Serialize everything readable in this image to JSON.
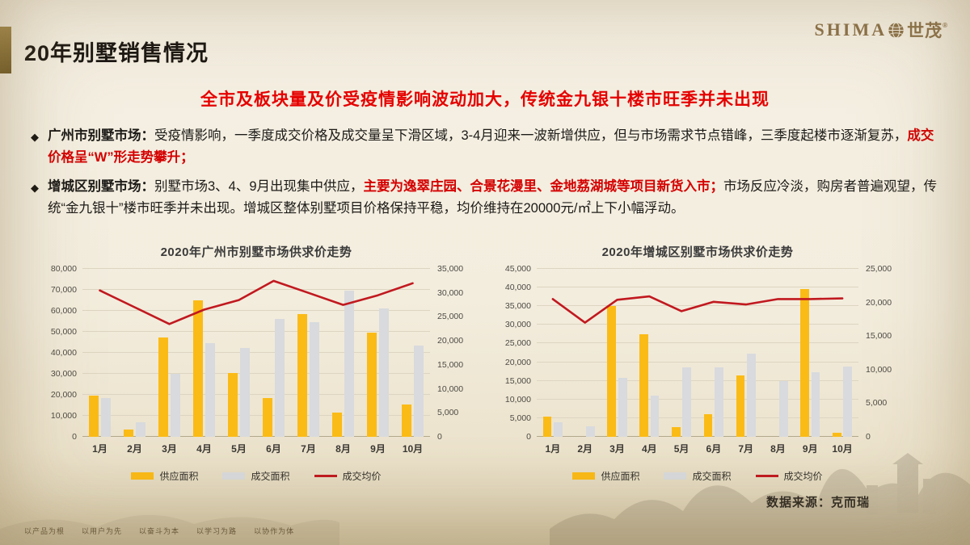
{
  "slide": {
    "title": "20年别墅销售情况",
    "logo": {
      "brand_en": "SHIMA",
      "brand_cn": "世茂",
      "reg": "®",
      "globe_icon": "globe-icon"
    },
    "headline": "全市及板块量及价受疫情影响波动加大，传统金九银十楼市旺季并未出现",
    "bullets": [
      {
        "label": "广州市别墅市场：",
        "segments": [
          {
            "text": "受疫情影响，一季度成交价格及成交量呈下滑区域，3-4月迎来一波新增供应，但与市场需求节点错峰，三季度起楼市逐渐复苏，",
            "style": "normal"
          },
          {
            "text": "成交价格呈“W”形走势攀升；",
            "style": "red"
          }
        ]
      },
      {
        "label": "增城区别墅市场：",
        "segments": [
          {
            "text": "别墅市场3、4、9月出现集中供应，",
            "style": "normal"
          },
          {
            "text": "主要为逸翠庄园、合景花漫里、金地荔湖城等项目新货入市；",
            "style": "red"
          },
          {
            "text": "市场反应冷淡，购房者普遍观望，传统“金九银十”楼市旺季并未出现。增城区整体别墅项目价格保持平稳，均价维持在20000元/㎡上下小幅浮动。",
            "style": "normal"
          }
        ]
      }
    ],
    "source": "数据来源：克而瑞",
    "footer_items": [
      "以产品为根",
      "以用户为先",
      "以奋斗为本",
      "以学习为路",
      "以协作为体"
    ]
  },
  "colors": {
    "supply_bar": "#FBBB16",
    "deal_bar": "#D8DADD",
    "price_line": "#C1191F",
    "headline_red": "#E60000",
    "accent_gold": "#8A7038"
  },
  "chart_data": [
    {
      "type": "bar",
      "title": "2020年广州市别墅市场供求价走势",
      "categories": [
        "1月",
        "2月",
        "3月",
        "4月",
        "5月",
        "6月",
        "7月",
        "8月",
        "9月",
        "10月"
      ],
      "series": [
        {
          "name": "供应面积",
          "type": "bar",
          "axis": "left",
          "color": "#FBBB16",
          "values": [
            19500,
            3500,
            47500,
            65000,
            30500,
            18500,
            58500,
            11500,
            49500,
            15500
          ]
        },
        {
          "name": "成交面积",
          "type": "bar",
          "axis": "left",
          "color": "#D8DADD",
          "values": [
            18500,
            7000,
            30000,
            44500,
            42500,
            56000,
            54500,
            69500,
            61000,
            43500
          ]
        },
        {
          "name": "成交均价",
          "type": "line",
          "axis": "right",
          "color": "#C1191F",
          "values": [
            30500,
            27000,
            23500,
            26500,
            28500,
            32500,
            30000,
            27500,
            29500,
            32000
          ]
        }
      ],
      "left_axis": {
        "min": 0,
        "max": 80000,
        "step": 10000
      },
      "right_axis": {
        "min": 0,
        "max": 35000,
        "step": 5000
      },
      "grid": true,
      "legend_position": "bottom"
    },
    {
      "type": "bar",
      "title": "2020年增城区别墅市场供求价走势",
      "categories": [
        "1月",
        "2月",
        "3月",
        "4月",
        "5月",
        "6月",
        "7月",
        "8月",
        "9月",
        "10月"
      ],
      "series": [
        {
          "name": "供应面积",
          "type": "bar",
          "axis": "left",
          "color": "#FBBB16",
          "values": [
            5500,
            0,
            35000,
            27500,
            2500,
            6000,
            16500,
            0,
            39500,
            1000
          ]
        },
        {
          "name": "成交面积",
          "type": "bar",
          "axis": "left",
          "color": "#D8DADD",
          "values": [
            4000,
            2800,
            15800,
            11000,
            18600,
            18700,
            22300,
            15000,
            17400,
            18800
          ]
        },
        {
          "name": "成交均价",
          "type": "line",
          "axis": "right",
          "color": "#C1191F",
          "values": [
            20500,
            17000,
            20400,
            20900,
            18700,
            20100,
            19700,
            20500,
            20500,
            20600
          ]
        }
      ],
      "left_axis": {
        "min": 0,
        "max": 45000,
        "step": 5000
      },
      "right_axis": {
        "min": 0,
        "max": 25000,
        "step": 5000
      },
      "grid": true,
      "legend_position": "bottom"
    }
  ]
}
